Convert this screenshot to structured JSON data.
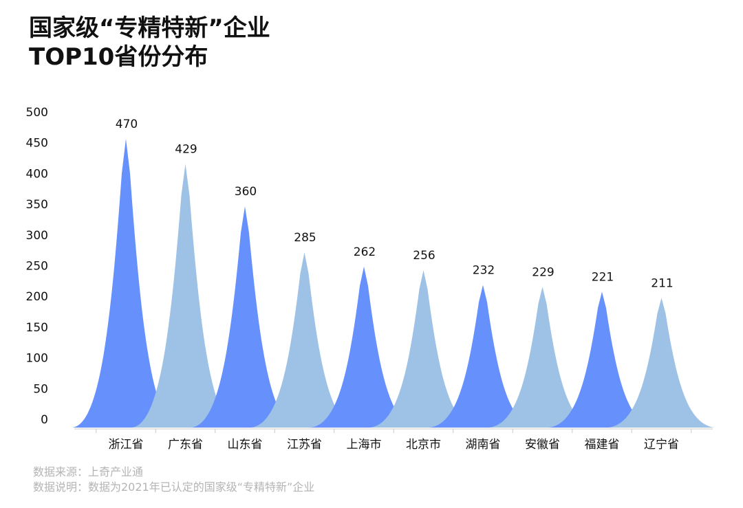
{
  "title_lines": [
    "国家级“专精特新”企业",
    "TOP10省份分布"
  ],
  "source_lines": [
    "数据来源：上奇产业通",
    "数据说明：数据为2021年已认定的国家级“专精特新”企业"
  ],
  "colors": {
    "dark": "#6690FC",
    "light": "#9EC2E6",
    "axis": "#C8C8C8",
    "text": "#111111"
  },
  "chart_data": {
    "type": "area",
    "title": "国家级“专精特新”企业 TOP10省份分布",
    "xlabel": "",
    "ylabel": "",
    "categories": [
      "浙江省",
      "广东省",
      "山东省",
      "江苏省",
      "上海市",
      "北京市",
      "湖南省",
      "安徽省",
      "福建省",
      "辽宁省"
    ],
    "values": [
      470,
      429,
      360,
      285,
      262,
      256,
      232,
      229,
      221,
      211
    ],
    "series_colors": [
      "dark",
      "light",
      "dark",
      "light",
      "dark",
      "light",
      "dark",
      "light",
      "dark",
      "light"
    ],
    "yticks": [
      0,
      50,
      100,
      150,
      200,
      250,
      300,
      350,
      400,
      450,
      500
    ],
    "ylim": [
      0,
      500
    ],
    "grid": false,
    "legend": "none"
  }
}
